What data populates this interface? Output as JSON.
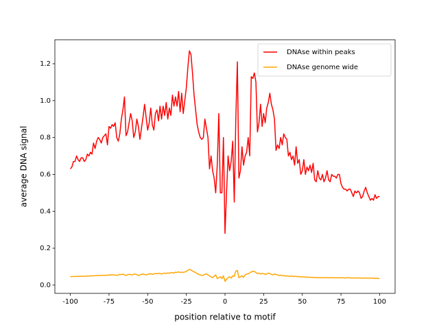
{
  "chart_data": {
    "type": "line",
    "xlabel": "position relative to motif",
    "ylabel": "average DNA signal",
    "legend": "upper right",
    "xlim": [
      -110,
      110
    ],
    "ylim": [
      -0.045,
      1.33
    ],
    "xticks": [
      -100,
      -75,
      -50,
      -25,
      0,
      25,
      50,
      75,
      100
    ],
    "yticks": [
      {
        "value": 0,
        "label": "0.0"
      },
      0.2,
      0.4,
      0.6,
      0.8,
      {
        "value": 1,
        "label": "1.0"
      },
      1.2
    ],
    "x": [
      -100,
      -99,
      -98,
      -97,
      -96,
      -95,
      -94,
      -93,
      -92,
      -91,
      -90,
      -89,
      -88,
      -87,
      -86,
      -85,
      -84,
      -83,
      -82,
      -81,
      -80,
      -79,
      -78,
      -77,
      -76,
      -75,
      -74,
      -73,
      -72,
      -71,
      -70,
      -69,
      -68,
      -67,
      -66,
      -65,
      -64,
      -63,
      -62,
      -61,
      -60,
      -59,
      -58,
      -57,
      -56,
      -55,
      -54,
      -53,
      -52,
      -51,
      -50,
      -49,
      -48,
      -47,
      -46,
      -45,
      -44,
      -43,
      -42,
      -41,
      -40,
      -39,
      -38,
      -37,
      -36,
      -35,
      -34,
      -33,
      -32,
      -31,
      -30,
      -29,
      -28,
      -27,
      -26,
      -25,
      -24,
      -23,
      -22,
      -21,
      -20,
      -19,
      -18,
      -17,
      -16,
      -15,
      -14,
      -13,
      -12,
      -11,
      -10,
      -9,
      -8,
      -7,
      -6,
      -5,
      -4,
      -3,
      -2,
      -1,
      0,
      1,
      2,
      3,
      4,
      5,
      6,
      7,
      8,
      9,
      10,
      11,
      12,
      13,
      14,
      15,
      16,
      17,
      18,
      19,
      20,
      21,
      22,
      23,
      24,
      25,
      26,
      27,
      28,
      29,
      30,
      31,
      32,
      33,
      34,
      35,
      36,
      37,
      38,
      39,
      40,
      41,
      42,
      43,
      44,
      45,
      46,
      47,
      48,
      49,
      50,
      51,
      52,
      53,
      54,
      55,
      56,
      57,
      58,
      59,
      60,
      61,
      62,
      63,
      64,
      65,
      66,
      67,
      68,
      69,
      70,
      71,
      72,
      73,
      74,
      75,
      76,
      77,
      78,
      79,
      80,
      81,
      82,
      83,
      84,
      85,
      86,
      87,
      88,
      89,
      90,
      91,
      92,
      93,
      94,
      95,
      96,
      97,
      98,
      99,
      100
    ],
    "series": [
      {
        "name": "DNAse within peaks",
        "color": "#ff0000",
        "values": [
          0.63,
          0.64,
          0.67,
          0.67,
          0.7,
          0.68,
          0.67,
          0.69,
          0.69,
          0.67,
          0.68,
          0.71,
          0.7,
          0.72,
          0.71,
          0.77,
          0.74,
          0.78,
          0.8,
          0.79,
          0.77,
          0.8,
          0.81,
          0.82,
          0.76,
          0.86,
          0.85,
          0.87,
          0.86,
          0.88,
          0.8,
          0.78,
          0.82,
          0.9,
          0.95,
          1.02,
          0.81,
          0.83,
          0.88,
          0.93,
          0.89,
          0.8,
          0.83,
          0.9,
          0.86,
          0.79,
          0.85,
          0.91,
          0.98,
          0.91,
          0.84,
          0.88,
          0.96,
          0.87,
          0.84,
          0.93,
          0.95,
          0.89,
          0.97,
          0.9,
          0.97,
          0.92,
          0.99,
          0.9,
          0.96,
          0.92,
          1.03,
          0.97,
          1.02,
          0.97,
          1.05,
          0.94,
          1.04,
          0.93,
          1.0,
          1.07,
          1.18,
          1.27,
          1.25,
          1.15,
          1.03,
          0.95,
          0.87,
          0.83,
          0.8,
          0.79,
          0.8,
          0.9,
          0.85,
          0.8,
          0.63,
          0.7,
          0.62,
          0.58,
          0.5,
          0.65,
          0.93,
          0.5,
          0.5,
          0.8,
          0.28,
          0.5,
          0.7,
          0.62,
          0.67,
          0.78,
          0.45,
          0.9,
          1.21,
          0.58,
          0.62,
          0.75,
          0.65,
          0.7,
          0.72,
          0.8,
          0.7,
          1.13,
          1.12,
          1.15,
          1.1,
          0.83,
          0.88,
          0.98,
          0.86,
          0.93,
          0.88,
          0.96,
          0.99,
          1.04,
          0.98,
          0.95,
          0.9,
          0.73,
          0.76,
          0.74,
          0.8,
          0.76,
          0.82,
          0.8,
          0.79,
          0.7,
          0.72,
          0.68,
          0.7,
          0.65,
          0.75,
          0.66,
          0.68,
          0.6,
          0.62,
          0.68,
          0.6,
          0.64,
          0.62,
          0.65,
          0.61,
          0.66,
          0.57,
          0.56,
          0.62,
          0.58,
          0.57,
          0.6,
          0.56,
          0.58,
          0.62,
          0.57,
          0.56,
          0.6,
          0.59,
          0.59,
          0.58,
          0.6,
          0.6,
          0.55,
          0.53,
          0.52,
          0.52,
          0.51,
          0.52,
          0.52,
          0.5,
          0.48,
          0.51,
          0.5,
          0.51,
          0.5,
          0.47,
          0.48,
          0.51,
          0.53,
          0.5,
          0.48,
          0.46,
          0.47,
          0.46,
          0.49,
          0.47,
          0.48,
          0.48
        ]
      },
      {
        "name": "DNAse genome wide",
        "color": "#ffa500",
        "values": [
          0.045,
          0.046,
          0.046,
          0.047,
          0.047,
          0.047,
          0.048,
          0.048,
          0.047,
          0.048,
          0.048,
          0.049,
          0.049,
          0.05,
          0.05,
          0.05,
          0.051,
          0.051,
          0.052,
          0.052,
          0.052,
          0.053,
          0.053,
          0.052,
          0.054,
          0.054,
          0.055,
          0.056,
          0.055,
          0.054,
          0.053,
          0.055,
          0.058,
          0.056,
          0.06,
          0.055,
          0.052,
          0.056,
          0.058,
          0.057,
          0.055,
          0.058,
          0.06,
          0.056,
          0.052,
          0.055,
          0.058,
          0.06,
          0.057,
          0.055,
          0.058,
          0.06,
          0.062,
          0.058,
          0.06,
          0.063,
          0.061,
          0.064,
          0.062,
          0.06,
          0.063,
          0.065,
          0.062,
          0.066,
          0.064,
          0.067,
          0.068,
          0.065,
          0.07,
          0.068,
          0.072,
          0.068,
          0.07,
          0.068,
          0.071,
          0.074,
          0.08,
          0.085,
          0.082,
          0.076,
          0.072,
          0.068,
          0.062,
          0.058,
          0.055,
          0.052,
          0.054,
          0.058,
          0.06,
          0.055,
          0.05,
          0.045,
          0.04,
          0.048,
          0.055,
          0.035,
          0.04,
          0.045,
          0.035,
          0.05,
          0.02,
          0.032,
          0.04,
          0.045,
          0.038,
          0.05,
          0.048,
          0.075,
          0.08,
          0.04,
          0.045,
          0.05,
          0.042,
          0.055,
          0.06,
          0.062,
          0.065,
          0.072,
          0.075,
          0.074,
          0.068,
          0.062,
          0.065,
          0.06,
          0.063,
          0.062,
          0.058,
          0.06,
          0.065,
          0.062,
          0.058,
          0.055,
          0.06,
          0.057,
          0.055,
          0.052,
          0.054,
          0.05,
          0.052,
          0.049,
          0.05,
          0.048,
          0.047,
          0.05,
          0.046,
          0.047,
          0.048,
          0.045,
          0.046,
          0.044,
          0.045,
          0.043,
          0.044,
          0.043,
          0.042,
          0.043,
          0.041,
          0.042,
          0.04,
          0.041,
          0.041,
          0.04,
          0.04,
          0.041,
          0.039,
          0.04,
          0.04,
          0.04,
          0.039,
          0.04,
          0.04,
          0.039,
          0.039,
          0.04,
          0.039,
          0.039,
          0.04,
          0.039,
          0.038,
          0.04,
          0.039,
          0.039,
          0.038,
          0.039,
          0.038,
          0.038,
          0.039,
          0.038,
          0.038,
          0.037,
          0.038,
          0.038,
          0.037,
          0.037,
          0.038,
          0.037,
          0.037,
          0.036,
          0.037,
          0.036,
          0.036
        ]
      }
    ]
  }
}
